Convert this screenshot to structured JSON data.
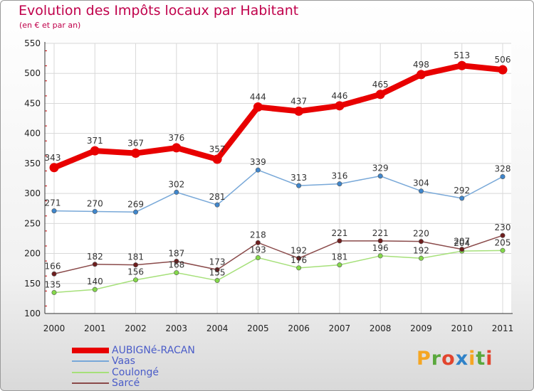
{
  "header": {
    "title": "Evolution des Impôts locaux par Habitant",
    "subtitle": "(en € et par an)"
  },
  "logo": {
    "text": "Proxiti",
    "colors": [
      "#f5a623",
      "#5aa83c",
      "#e2452e",
      "#2f82c8",
      "#f5a623",
      "#5aa83c",
      "#e2452e"
    ]
  },
  "chart_data": {
    "type": "line",
    "title": "Evolution des Impôts locaux par Habitant",
    "subtitle": "(en € et par an)",
    "xlabel": "",
    "ylabel": "",
    "ylim": [
      100,
      550
    ],
    "yticks": [
      100,
      150,
      200,
      250,
      300,
      350,
      400,
      450,
      500,
      550
    ],
    "grid": true,
    "legend_position": "bottom-left",
    "x": [
      "2000",
      "2001",
      "2002",
      "2003",
      "2004",
      "2005",
      "2006",
      "2007",
      "2008",
      "2009",
      "2010",
      "2011"
    ],
    "series": [
      {
        "name": "AUBIGNé-RACAN",
        "color": "#e80000",
        "marker_color": "#e80000",
        "thick": true,
        "values": [
          343,
          371,
          367,
          376,
          357,
          444,
          437,
          446,
          465,
          498,
          513,
          506
        ],
        "labels": [
          "343",
          "371",
          "367",
          "376",
          "357",
          "444",
          "437",
          "446",
          "465",
          "498",
          "513",
          "506"
        ]
      },
      {
        "name": "Vaas",
        "color": "#78a8d8",
        "marker_color": "#3f86cc",
        "thick": false,
        "values": [
          271,
          270,
          269,
          302,
          281,
          339,
          313,
          316,
          329,
          304,
          292,
          328
        ],
        "labels": [
          "271",
          "270",
          "269",
          "302",
          "281",
          "339",
          "313",
          "316",
          "329",
          "304",
          "292",
          "328"
        ]
      },
      {
        "name": "Coulongé",
        "color": "#a6e07a",
        "marker_color": "#84d84a",
        "thick": false,
        "values": [
          135,
          140,
          156,
          168,
          155,
          193,
          176,
          181,
          196,
          192,
          204,
          205
        ],
        "labels": [
          "135",
          "140",
          "156",
          "168",
          "155",
          "193",
          "176",
          "181",
          "196",
          "192",
          "204",
          "205"
        ]
      },
      {
        "name": "Sarcé",
        "color": "#8a4a4a",
        "marker_color": "#6e1e1e",
        "thick": false,
        "values": [
          166,
          182,
          181,
          187,
          173,
          218,
          192,
          221,
          221,
          220,
          207,
          230
        ],
        "labels": [
          "166",
          "182",
          "181",
          "187",
          "173",
          "218",
          "192",
          "221",
          "221",
          "220",
          "207",
          "230"
        ]
      }
    ]
  }
}
